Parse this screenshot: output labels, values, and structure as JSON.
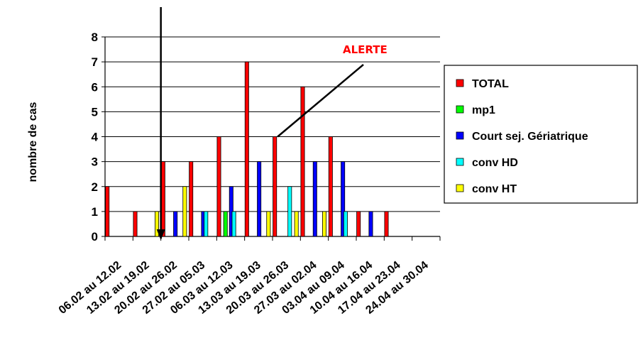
{
  "chart_data": {
    "type": "bar",
    "ylabel": "nombre de cas",
    "xlabel": "",
    "ylim": [
      0,
      8
    ],
    "yticks": [
      "0",
      "1",
      "2",
      "3",
      "4",
      "5",
      "6",
      "7",
      "8"
    ],
    "grid": true,
    "legend_position": "right",
    "categories": [
      "06.02 au 12.02",
      "13.02 au 19.02",
      "20.02 au 26.02",
      "27.02 au 05.03",
      "06.03 au 12.03",
      "13.03 au 19.03",
      "20.03 au 26.03",
      "27.03 au 02.04",
      "03.04 au 09.04",
      "10.04 au 16.04",
      "17.04 au 23.04",
      "24.04 au 30.04"
    ],
    "series": [
      {
        "name": "TOTAL",
        "color": "#ff0000",
        "values": [
          2,
          1,
          3,
          3,
          4,
          7,
          4,
          6,
          4,
          1,
          1,
          0
        ]
      },
      {
        "name": "mp1",
        "color": "#00ff00",
        "values": [
          0,
          0,
          0,
          0,
          1,
          0,
          0,
          0,
          0,
          0,
          0,
          0
        ]
      },
      {
        "name": "Court sej. Gériatrique",
        "color": "#0000ff",
        "values": [
          0,
          0,
          1,
          1,
          2,
          3,
          0,
          3,
          3,
          1,
          0,
          0
        ]
      },
      {
        "name": "conv HD",
        "color": "#00ffff",
        "values": [
          0,
          0,
          0,
          1,
          1,
          0,
          2,
          0,
          1,
          0,
          0,
          0
        ]
      },
      {
        "name": "conv HT",
        "color": "#ffff00",
        "values": [
          0,
          1,
          2,
          0,
          0,
          1,
          1,
          1,
          0,
          0,
          0,
          0
        ]
      }
    ],
    "annotations": [
      {
        "text": "ALERTE",
        "color": "#ff0000",
        "points_to_category": "20.03 au 26.03",
        "points_to_value": 4
      }
    ],
    "marker_arrow": {
      "direction": "down",
      "between_categories": [
        "13.02 au 19.02",
        "20.02 au 26.02"
      ]
    }
  }
}
